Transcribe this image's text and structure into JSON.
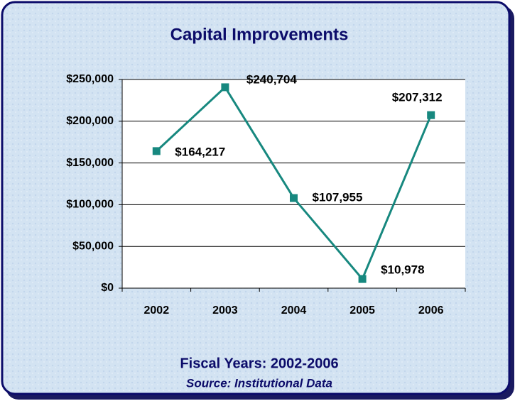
{
  "chart_data": {
    "type": "line",
    "title": "Capital Improvements",
    "categories": [
      "2002",
      "2003",
      "2004",
      "2005",
      "2006"
    ],
    "series": [
      {
        "name": "Capital Improvements",
        "color": "#17887f",
        "values": [
          164217,
          240704,
          107955,
          10978,
          207312
        ],
        "value_labels": [
          "$164,217",
          "$240,704",
          "$107,955",
          "$10,978",
          "$207,312"
        ]
      }
    ],
    "ylim": [
      0,
      250000
    ],
    "yticks": [
      {
        "value": 0,
        "label": "$0"
      },
      {
        "value": 50000,
        "label": "$50,000"
      },
      {
        "value": 100000,
        "label": "$100,000"
      },
      {
        "value": 150000,
        "label": "$150,000"
      },
      {
        "value": 200000,
        "label": "$200,000"
      },
      {
        "value": 250000,
        "label": "$250,000"
      }
    ],
    "grid": true,
    "xlabel": "Fiscal Years: 2002-2006",
    "source": "Source: Institutional Data"
  }
}
